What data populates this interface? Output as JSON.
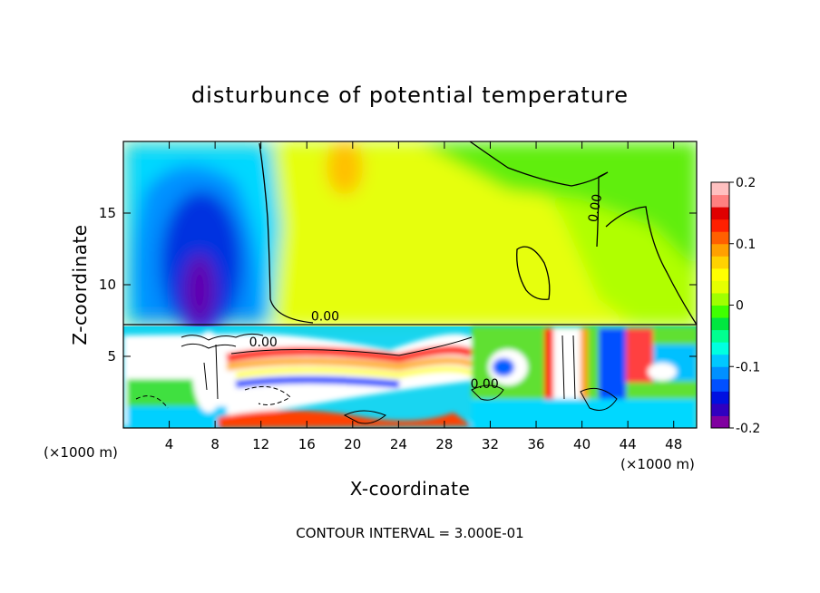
{
  "chart_data": {
    "type": "heatmap",
    "title": "disturbunce of potential temperature",
    "xlabel": "X-coordinate",
    "ylabel": "Z-coordinate",
    "x_unit_label_left": "(×1000 m)",
    "x_unit_label_right": "(×1000 m)",
    "xlim": [
      0,
      50
    ],
    "ylim": [
      0,
      20
    ],
    "xticks": [
      4,
      8,
      12,
      16,
      20,
      24,
      28,
      32,
      36,
      40,
      44,
      48
    ],
    "yticks": [
      5,
      10,
      15
    ],
    "colorbar": {
      "vmin": -0.2,
      "vmax": 0.2,
      "tick_labels": [
        "0.2",
        "0.1",
        "0",
        "-0.1",
        "-0.2"
      ],
      "tick_values": [
        0.2,
        0.1,
        0,
        -0.1,
        -0.2
      ],
      "colors": [
        "#8000a0",
        "#3000c0",
        "#0010e0",
        "#0050ff",
        "#0090ff",
        "#00c8ff",
        "#00ffe0",
        "#00ff90",
        "#00e640",
        "#40ff00",
        "#a0ff00",
        "#e6ff00",
        "#ffff00",
        "#ffd200",
        "#ffa000",
        "#ff6000",
        "#ff2000",
        "#e00000",
        "#ff8080",
        "#ffc0c0"
      ]
    },
    "contour_labels": [
      {
        "text": "0.00",
        "x": 17.6,
        "z": 7.5
      },
      {
        "text": "0.00",
        "x": 12.2,
        "z": 5.7
      },
      {
        "text": "0.00",
        "x": 31.5,
        "z": 2.8
      },
      {
        "text": "0.00",
        "x": 41.5,
        "z": 15.3
      }
    ],
    "footer": "CONTOUR INTERVAL = 3.000E-01"
  }
}
